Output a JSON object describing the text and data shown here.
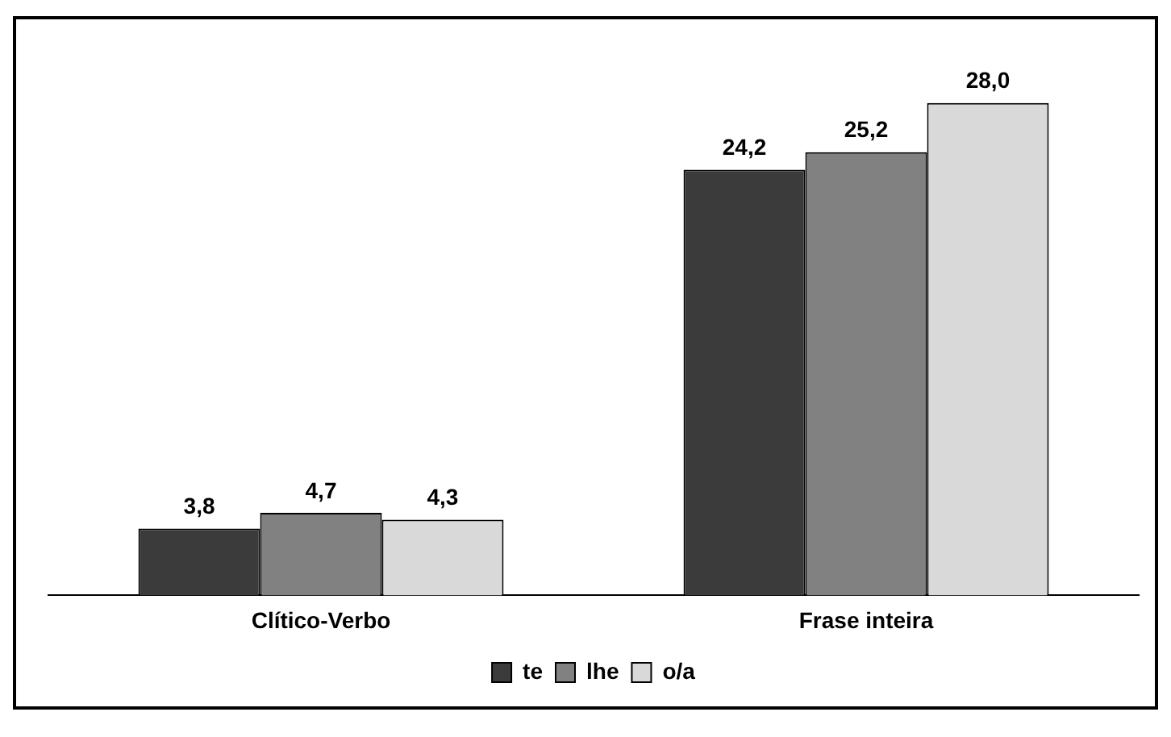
{
  "chart_data": {
    "type": "bar",
    "categories": [
      "Clítico-Verbo",
      "Frase inteira"
    ],
    "legend": "bottom",
    "grid": false,
    "series": [
      {
        "name": "te",
        "color": "#3b3b3b",
        "values": [
          3.8,
          24.2
        ],
        "value_labels": [
          "3,8",
          "24,2"
        ]
      },
      {
        "name": "lhe",
        "color": "#818181",
        "values": [
          4.7,
          25.2
        ],
        "value_labels": [
          "4,7",
          "25,2"
        ]
      },
      {
        "name": "o/a",
        "color": "#d9d9d9",
        "values": [
          4.3,
          28.0
        ],
        "value_labels": [
          "4,3",
          "28,0"
        ]
      }
    ]
  }
}
